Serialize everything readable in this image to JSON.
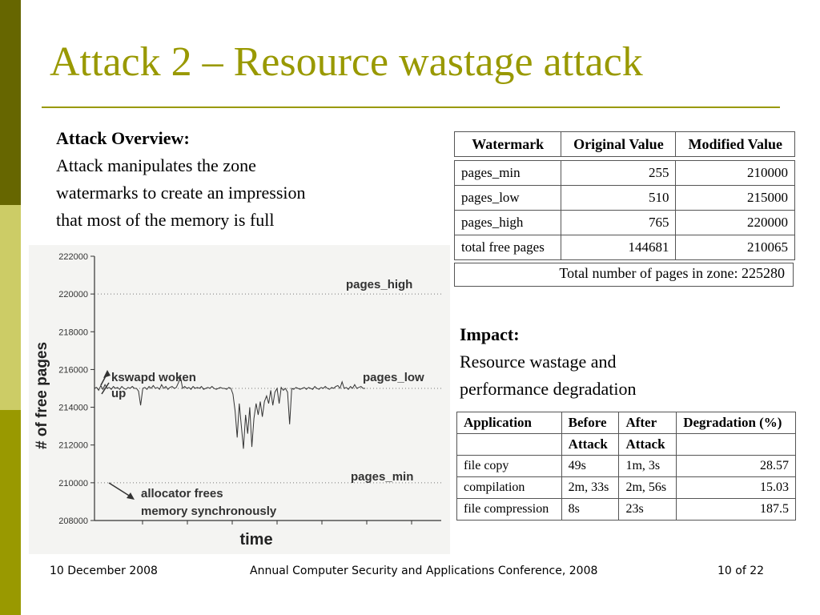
{
  "slide": {
    "title": "Attack 2 – Resource wastage attack",
    "overview": {
      "heading": "Attack Overview:",
      "lines": [
        "Attack manipulates the zone",
        "watermarks to create an impression",
        "that most of the memory is full"
      ]
    },
    "impact": {
      "heading": "Impact:",
      "lines": [
        "Resource wastage and",
        "performance degradation"
      ]
    },
    "watermark_table": {
      "headers": [
        "Watermark",
        "Original Value",
        "Modified Value"
      ],
      "rows": [
        [
          "pages_min",
          "255",
          "210000"
        ],
        [
          "pages_low",
          "510",
          "215000"
        ],
        [
          "pages_high",
          "765",
          "220000"
        ],
        [
          "total free pages",
          "144681",
          "210065"
        ]
      ],
      "total": "Total number of pages in zone: 225280"
    },
    "app_table": {
      "headers": [
        "Application",
        "Before",
        "After",
        "Degradation (%)"
      ],
      "subheaders": [
        "",
        "Attack",
        "Attack",
        ""
      ],
      "rows": [
        [
          "file copy",
          "49s",
          "1m, 3s",
          "28.57"
        ],
        [
          "compilation",
          "2m, 33s",
          "2m, 56s",
          "15.03"
        ],
        [
          "file compression",
          "8s",
          "23s",
          "187.5"
        ]
      ]
    },
    "footer": {
      "date": "10 December 2008",
      "conference": "Annual Computer Security and Applications Conference, 2008",
      "page": "10 of  22"
    }
  },
  "chart_data": {
    "type": "line",
    "xlabel": "time",
    "ylabel": "# of free pages",
    "ylim": [
      208000,
      222000
    ],
    "yticks": [
      "222000",
      "220000",
      "218000",
      "216000",
      "214000",
      "212000",
      "210000",
      "208000"
    ],
    "reference_lines": [
      {
        "label": "pages_high",
        "value": 220000
      },
      {
        "label": "pages_low",
        "value": 215000
      },
      {
        "label": "pages_min",
        "value": 210000
      }
    ],
    "annotations": [
      {
        "text_lines": [
          "kswapd woken",
          "up"
        ]
      },
      {
        "text_lines": [
          "allocator frees",
          "memory synchronously"
        ]
      }
    ],
    "series": [
      {
        "values": [
          215000,
          215050,
          214900,
          215150,
          214950,
          215200,
          215000,
          215050,
          214950,
          215100,
          215000,
          215050,
          214950,
          215100,
          215000,
          214950,
          215050,
          215000,
          215100,
          215000,
          215000,
          214850,
          214100,
          215000,
          215050,
          214950,
          215100,
          215000,
          215150,
          215000,
          215050,
          214950,
          215200,
          215000,
          215100,
          214950,
          215050,
          215100,
          215000,
          215050,
          215300,
          215600,
          215000,
          215100,
          215000,
          215050,
          214950,
          215100,
          215000,
          215050,
          215000,
          215100,
          214950,
          215000,
          215050,
          215000,
          215100,
          215000,
          214950,
          215000,
          215050,
          215000,
          215000,
          214950,
          215050,
          215000,
          214700,
          213800,
          212400,
          214200,
          213000,
          211800,
          213600,
          212600,
          214000,
          211900,
          213400,
          214200,
          213600,
          214300,
          213500,
          214300,
          214600,
          214200,
          214900,
          214100,
          214800,
          215000,
          214200,
          215050,
          214900,
          215000,
          214800,
          213100,
          215000,
          214950,
          215050,
          215000,
          214950,
          215000,
          215050,
          214950,
          215050,
          215000,
          214950,
          215100,
          215000,
          214950,
          215050,
          215000,
          215100,
          215000,
          214950,
          215050,
          215000,
          215100,
          215150,
          215000,
          215350,
          215000,
          215050,
          214950,
          215100,
          215000,
          215200,
          215000,
          215050,
          215100,
          215000,
          215000
        ]
      }
    ]
  }
}
